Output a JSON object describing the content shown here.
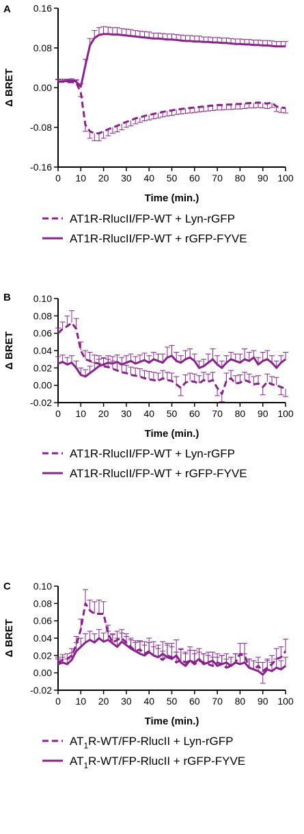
{
  "colors": {
    "series": "#8B1F8F",
    "axis": "#000000"
  },
  "chart_data": [
    {
      "panel": "A",
      "type": "line",
      "xlabel": "Time (min.)",
      "ylabel": "Δ BRET",
      "xlim": [
        0,
        100
      ],
      "ylim": [
        -0.16,
        0.16
      ],
      "xticks": [
        0,
        10,
        20,
        30,
        40,
        50,
        60,
        70,
        80,
        90,
        100
      ],
      "yticks": [
        -0.16,
        -0.08,
        0.0,
        0.08,
        0.16
      ],
      "ytick_labels": [
        "-0.16",
        "-0.08",
        "0.00",
        "0.08",
        "0.16"
      ],
      "legend_position": "bottom",
      "series": [
        {
          "name": "AT1R-RlucII/FP-WT + Lyn-rGFP",
          "style": "dashed",
          "x": [
            0,
            2,
            4,
            6,
            8,
            10,
            12,
            14,
            16,
            18,
            20,
            22,
            24,
            26,
            28,
            30,
            32,
            34,
            36,
            38,
            40,
            42,
            44,
            46,
            48,
            50,
            52,
            54,
            56,
            58,
            60,
            62,
            64,
            66,
            68,
            70,
            72,
            74,
            76,
            78,
            80,
            82,
            84,
            86,
            88,
            90,
            92,
            94,
            96,
            98,
            100
          ],
          "y": [
            0.012,
            0.012,
            0.011,
            0.011,
            0.01,
            -0.01,
            -0.075,
            -0.088,
            -0.092,
            -0.092,
            -0.088,
            -0.084,
            -0.08,
            -0.077,
            -0.073,
            -0.069,
            -0.066,
            -0.062,
            -0.06,
            -0.057,
            -0.055,
            -0.053,
            -0.051,
            -0.049,
            -0.047,
            -0.046,
            -0.044,
            -0.043,
            -0.042,
            -0.041,
            -0.04,
            -0.039,
            -0.038,
            -0.037,
            -0.036,
            -0.035,
            -0.035,
            -0.034,
            -0.034,
            -0.033,
            -0.033,
            -0.032,
            -0.031,
            -0.031,
            -0.03,
            -0.031,
            -0.032,
            -0.03,
            -0.038,
            -0.04,
            -0.041
          ],
          "err": [
            0.005,
            0.005,
            0.005,
            0.005,
            0.005,
            0.008,
            0.013,
            0.014,
            0.015,
            0.015,
            0.014,
            0.013,
            0.012,
            0.012,
            0.012,
            0.011,
            0.011,
            0.011,
            0.01,
            0.01,
            0.01,
            0.01,
            0.01,
            0.01,
            0.01,
            0.01,
            0.01,
            0.01,
            0.01,
            0.01,
            0.01,
            0.01,
            0.01,
            0.01,
            0.01,
            0.01,
            0.01,
            0.01,
            0.01,
            0.01,
            0.01,
            0.01,
            0.01,
            0.01,
            0.01,
            0.01,
            0.01,
            0.01,
            0.01,
            0.01,
            0.01
          ]
        },
        {
          "name": "AT1R-RlucII/FP-WT + rGFP-FYVE",
          "style": "solid",
          "x": [
            0,
            2,
            4,
            6,
            8,
            10,
            12,
            14,
            16,
            18,
            20,
            22,
            24,
            26,
            28,
            30,
            32,
            34,
            36,
            38,
            40,
            42,
            44,
            46,
            48,
            50,
            52,
            54,
            56,
            58,
            60,
            62,
            64,
            66,
            68,
            70,
            72,
            74,
            76,
            78,
            80,
            82,
            84,
            86,
            88,
            90,
            92,
            94,
            96,
            98,
            100
          ],
          "y": [
            0.012,
            0.013,
            0.013,
            0.014,
            0.012,
            0.002,
            0.045,
            0.085,
            0.1,
            0.106,
            0.108,
            0.108,
            0.107,
            0.107,
            0.106,
            0.105,
            0.104,
            0.103,
            0.102,
            0.101,
            0.1,
            0.099,
            0.099,
            0.098,
            0.097,
            0.097,
            0.096,
            0.095,
            0.094,
            0.094,
            0.093,
            0.093,
            0.092,
            0.092,
            0.091,
            0.091,
            0.09,
            0.09,
            0.089,
            0.088,
            0.088,
            0.087,
            0.087,
            0.086,
            0.086,
            0.085,
            0.085,
            0.084,
            0.083,
            0.083,
            0.083
          ],
          "err": [
            0.004,
            0.004,
            0.004,
            0.004,
            0.004,
            0.006,
            0.012,
            0.014,
            0.015,
            0.015,
            0.015,
            0.014,
            0.014,
            0.014,
            0.013,
            0.013,
            0.013,
            0.012,
            0.012,
            0.012,
            0.012,
            0.011,
            0.011,
            0.011,
            0.011,
            0.011,
            0.011,
            0.011,
            0.011,
            0.011,
            0.011,
            0.011,
            0.01,
            0.01,
            0.01,
            0.01,
            0.01,
            0.01,
            0.01,
            0.01,
            0.01,
            0.01,
            0.01,
            0.01,
            0.01,
            0.01,
            0.01,
            0.01,
            0.01,
            0.01,
            0.01
          ]
        }
      ]
    },
    {
      "panel": "B",
      "type": "line",
      "xlabel": "Time (min.)",
      "ylabel": "Δ BRET",
      "xlim": [
        0,
        100
      ],
      "ylim": [
        -0.02,
        0.1
      ],
      "xticks": [
        0,
        10,
        20,
        30,
        40,
        50,
        60,
        70,
        80,
        90,
        100
      ],
      "yticks": [
        -0.02,
        0.0,
        0.02,
        0.04,
        0.06,
        0.08,
        0.1
      ],
      "ytick_labels": [
        "-0.02",
        "0.00",
        "0.02",
        "0.04",
        "0.06",
        "0.08",
        "0.10"
      ],
      "legend_position": "bottom",
      "series": [
        {
          "name": "AT1R-RlucII/FP-WT + Lyn-rGFP",
          "style": "dashed",
          "x": [
            0,
            2,
            4,
            6,
            8,
            10,
            12,
            14,
            16,
            18,
            20,
            22,
            24,
            26,
            28,
            30,
            32,
            34,
            36,
            38,
            40,
            42,
            44,
            46,
            48,
            50,
            52,
            54,
            56,
            58,
            60,
            62,
            64,
            66,
            68,
            70,
            72,
            74,
            76,
            78,
            80,
            82,
            84,
            86,
            88,
            90,
            92,
            94,
            96,
            98,
            100
          ],
          "y": [
            0.06,
            0.065,
            0.068,
            0.072,
            0.065,
            0.04,
            0.03,
            0.028,
            0.026,
            0.025,
            0.022,
            0.021,
            0.019,
            0.017,
            0.015,
            0.014,
            0.012,
            0.011,
            0.01,
            0.008,
            0.007,
            0.006,
            0.005,
            0.008,
            0.006,
            0.005,
            0.001,
            -0.003,
            0.003,
            0.005,
            0.004,
            0.002,
            0.006,
            0.004,
            0.006,
            -0.003,
            -0.01,
            0.005,
            0.008,
            0.002,
            0.003,
            0.006,
            0.004,
            0.001,
            0.002,
            -0.002,
            0.004,
            0.001,
            0.0,
            -0.002,
            -0.004
          ],
          "err": [
            0.006,
            0.008,
            0.012,
            0.014,
            0.012,
            0.01,
            0.01,
            0.01,
            0.009,
            0.009,
            0.009,
            0.009,
            0.009,
            0.009,
            0.009,
            0.009,
            0.009,
            0.009,
            0.009,
            0.009,
            0.009,
            0.009,
            0.009,
            0.009,
            0.009,
            0.009,
            0.009,
            0.009,
            0.009,
            0.009,
            0.009,
            0.009,
            0.009,
            0.009,
            0.009,
            0.009,
            0.009,
            0.009,
            0.009,
            0.009,
            0.009,
            0.009,
            0.009,
            0.009,
            0.009,
            0.009,
            0.009,
            0.009,
            0.009,
            0.009,
            0.009
          ]
        },
        {
          "name": "AT1R-RlucII/FP-WT + rGFP-FYVE",
          "style": "solid",
          "x": [
            0,
            2,
            4,
            6,
            8,
            10,
            12,
            14,
            16,
            18,
            20,
            22,
            24,
            26,
            28,
            30,
            32,
            34,
            36,
            38,
            40,
            42,
            44,
            46,
            48,
            50,
            52,
            54,
            56,
            58,
            60,
            62,
            64,
            66,
            68,
            70,
            72,
            74,
            76,
            78,
            80,
            82,
            84,
            86,
            88,
            90,
            92,
            94,
            96,
            98,
            100
          ],
          "y": [
            0.025,
            0.027,
            0.024,
            0.026,
            0.02,
            0.012,
            0.01,
            0.014,
            0.018,
            0.022,
            0.024,
            0.026,
            0.025,
            0.027,
            0.024,
            0.026,
            0.028,
            0.025,
            0.027,
            0.029,
            0.026,
            0.03,
            0.028,
            0.026,
            0.032,
            0.034,
            0.028,
            0.026,
            0.03,
            0.032,
            0.028,
            0.02,
            0.022,
            0.026,
            0.03,
            0.024,
            0.02,
            0.026,
            0.03,
            0.028,
            0.026,
            0.03,
            0.028,
            0.032,
            0.024,
            0.028,
            0.03,
            0.026,
            0.02,
            0.026,
            0.03
          ],
          "err": [
            0.008,
            0.008,
            0.008,
            0.008,
            0.008,
            0.008,
            0.008,
            0.008,
            0.008,
            0.008,
            0.008,
            0.008,
            0.008,
            0.008,
            0.008,
            0.008,
            0.008,
            0.008,
            0.008,
            0.008,
            0.008,
            0.008,
            0.008,
            0.01,
            0.012,
            0.012,
            0.01,
            0.008,
            0.01,
            0.01,
            0.008,
            0.008,
            0.008,
            0.01,
            0.012,
            0.01,
            0.008,
            0.008,
            0.008,
            0.008,
            0.01,
            0.012,
            0.01,
            0.008,
            0.008,
            0.01,
            0.01,
            0.008,
            0.008,
            0.008,
            0.008
          ]
        }
      ]
    },
    {
      "panel": "C",
      "type": "line",
      "xlabel": "Time (min.)",
      "ylabel": "Δ BRET",
      "xlim": [
        0,
        100
      ],
      "ylim": [
        -0.02,
        0.1
      ],
      "xticks": [
        0,
        10,
        20,
        30,
        40,
        50,
        60,
        70,
        80,
        90,
        100
      ],
      "yticks": [
        -0.02,
        0.0,
        0.02,
        0.04,
        0.06,
        0.08,
        0.1
      ],
      "ytick_labels": [
        "-0.02",
        "0.00",
        "0.02",
        "0.04",
        "0.06",
        "0.08",
        "0.10"
      ],
      "legend_position": "bottom",
      "series": [
        {
          "name": "AT1R-WT/FP-RlucII + Lyn-rGFP",
          "name_parts": [
            "AT",
            "1",
            "R-WT/FP-RlucII + Lyn-rGFP"
          ],
          "style": "dashed",
          "x": [
            0,
            2,
            4,
            6,
            8,
            10,
            12,
            14,
            16,
            18,
            20,
            22,
            24,
            26,
            28,
            30,
            32,
            34,
            36,
            38,
            40,
            42,
            44,
            46,
            48,
            50,
            52,
            54,
            56,
            58,
            60,
            62,
            64,
            66,
            68,
            70,
            72,
            74,
            76,
            78,
            80,
            82,
            84,
            86,
            88,
            90,
            92,
            94,
            96,
            98,
            100
          ],
          "y": [
            0.012,
            0.015,
            0.016,
            0.02,
            0.032,
            0.05,
            0.08,
            0.072,
            0.068,
            0.068,
            0.068,
            0.045,
            0.035,
            0.038,
            0.04,
            0.035,
            0.03,
            0.025,
            0.027,
            0.022,
            0.025,
            0.02,
            0.018,
            0.015,
            0.02,
            0.018,
            0.012,
            0.015,
            0.012,
            0.014,
            0.01,
            0.014,
            0.012,
            0.01,
            0.008,
            0.012,
            0.01,
            0.006,
            0.008,
            0.012,
            0.022,
            0.02,
            0.006,
            0.004,
            0.008,
            0.002,
            0.006,
            0.01,
            0.016,
            0.018,
            0.025
          ],
          "err": [
            0.006,
            0.006,
            0.006,
            0.008,
            0.01,
            0.012,
            0.016,
            0.012,
            0.014,
            0.016,
            0.014,
            0.01,
            0.01,
            0.01,
            0.01,
            0.01,
            0.01,
            0.01,
            0.01,
            0.01,
            0.01,
            0.01,
            0.01,
            0.01,
            0.012,
            0.012,
            0.012,
            0.012,
            0.012,
            0.012,
            0.012,
            0.01,
            0.01,
            0.01,
            0.01,
            0.01,
            0.01,
            0.01,
            0.01,
            0.01,
            0.012,
            0.014,
            0.01,
            0.01,
            0.01,
            0.01,
            0.01,
            0.01,
            0.012,
            0.012,
            0.014
          ]
        },
        {
          "name": "AT1R-WT/FP-RlucII + rGFP-FYVE",
          "name_parts": [
            "AT",
            "1",
            "R-WT/FP-RlucII + rGFP-FYVE"
          ],
          "style": "solid",
          "x": [
            0,
            2,
            4,
            6,
            8,
            10,
            12,
            14,
            16,
            18,
            20,
            22,
            24,
            26,
            28,
            30,
            32,
            34,
            36,
            38,
            40,
            42,
            44,
            46,
            48,
            50,
            52,
            54,
            56,
            58,
            60,
            62,
            64,
            66,
            68,
            70,
            72,
            74,
            76,
            78,
            80,
            82,
            84,
            86,
            88,
            90,
            92,
            94,
            96,
            98,
            100
          ],
          "y": [
            0.01,
            0.012,
            0.01,
            0.015,
            0.025,
            0.03,
            0.035,
            0.038,
            0.035,
            0.04,
            0.036,
            0.038,
            0.034,
            0.03,
            0.036,
            0.032,
            0.028,
            0.025,
            0.022,
            0.02,
            0.024,
            0.02,
            0.018,
            0.022,
            0.018,
            0.016,
            0.02,
            0.012,
            0.008,
            0.014,
            0.012,
            0.016,
            0.01,
            0.012,
            0.014,
            0.008,
            0.01,
            0.012,
            0.008,
            0.012,
            0.01,
            0.012,
            0.006,
            0.004,
            0.002,
            -0.002,
            0.004,
            0.002,
            0.006,
            0.004,
            0.008
          ],
          "err": [
            0.006,
            0.006,
            0.006,
            0.008,
            0.01,
            0.01,
            0.01,
            0.01,
            0.01,
            0.01,
            0.01,
            0.01,
            0.01,
            0.01,
            0.01,
            0.01,
            0.01,
            0.012,
            0.014,
            0.016,
            0.016,
            0.016,
            0.014,
            0.014,
            0.016,
            0.018,
            0.018,
            0.016,
            0.014,
            0.016,
            0.014,
            0.012,
            0.012,
            0.012,
            0.01,
            0.01,
            0.01,
            0.01,
            0.01,
            0.01,
            0.01,
            0.01,
            0.01,
            0.01,
            0.01,
            0.01,
            0.01,
            0.01,
            0.01,
            0.01,
            0.01
          ]
        }
      ]
    }
  ]
}
